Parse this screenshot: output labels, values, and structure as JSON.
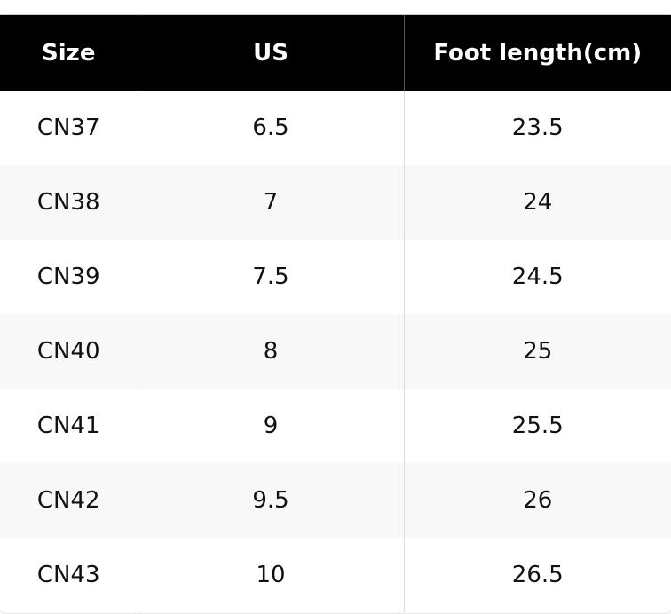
{
  "table": {
    "header": [
      "Size",
      "US",
      "Foot length(cm)"
    ],
    "rows": [
      [
        "CN37",
        "6.5",
        "23.5"
      ],
      [
        "CN38",
        "7",
        "24"
      ],
      [
        "CN39",
        "7.5",
        "24.5"
      ],
      [
        "CN40",
        "8",
        "25"
      ],
      [
        "CN41",
        "9",
        "25.5"
      ],
      [
        "CN42",
        "9.5",
        "26"
      ],
      [
        "CN43",
        "10",
        "26.5"
      ]
    ]
  }
}
